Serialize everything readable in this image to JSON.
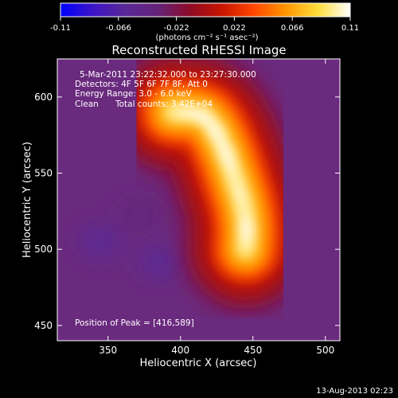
{
  "chart_data": {
    "type": "heatmap",
    "title": "Reconstructed RHESSI Image",
    "xlabel": "Heliocentric X (arcsec)",
    "ylabel": "Heliocentric Y (arcsec)",
    "xlim": [
      315,
      510
    ],
    "ylim": [
      440,
      625
    ],
    "xticks": [
      350,
      400,
      450,
      500
    ],
    "yticks": [
      450,
      500,
      550,
      600
    ],
    "colorbar": {
      "min": -0.11,
      "max": 0.11,
      "ticks": [
        "-0.11",
        "-0.066",
        "-0.022",
        "0.022",
        "0.066",
        "0.11"
      ],
      "units_label": "(photons cm⁻² s⁻¹ asec⁻²)",
      "colormap": [
        "#0000ff",
        "#3c14c8",
        "#5a2896",
        "#64237a",
        "#8c0a28",
        "#c81400",
        "#ff4600",
        "#ff9600",
        "#ffdc3c",
        "#ffffff"
      ]
    },
    "annotations": {
      "time_range": "5-Mar-2011 23:22:32.000 to 23:27:30.000",
      "detectors": "Detectors: 4F 5F 6F 7F 8F, Att 0",
      "energy_range": "Energy Range: 3.0 - 6.0 keV",
      "method": "Clean",
      "total_counts": "Total counts: 3.42E+04",
      "peak_position": "Position of Peak = [416,589]"
    },
    "emission_ridge": [
      {
        "x": 395,
        "y": 590,
        "level": 0.085
      },
      {
        "x": 416,
        "y": 589,
        "level": 0.11
      },
      {
        "x": 425,
        "y": 577,
        "level": 0.105
      },
      {
        "x": 432,
        "y": 562,
        "level": 0.1
      },
      {
        "x": 438,
        "y": 545,
        "level": 0.09
      },
      {
        "x": 444,
        "y": 528,
        "level": 0.095
      },
      {
        "x": 446,
        "y": 512,
        "level": 0.1
      },
      {
        "x": 445,
        "y": 500,
        "level": 0.08
      }
    ],
    "negative_blobs": [
      {
        "x": 345,
        "y": 505,
        "level": -0.055
      },
      {
        "x": 372,
        "y": 522,
        "level": -0.045
      },
      {
        "x": 385,
        "y": 492,
        "level": -0.06
      }
    ]
  },
  "footer": {
    "date": "13-Aug-2013 02:23"
  }
}
